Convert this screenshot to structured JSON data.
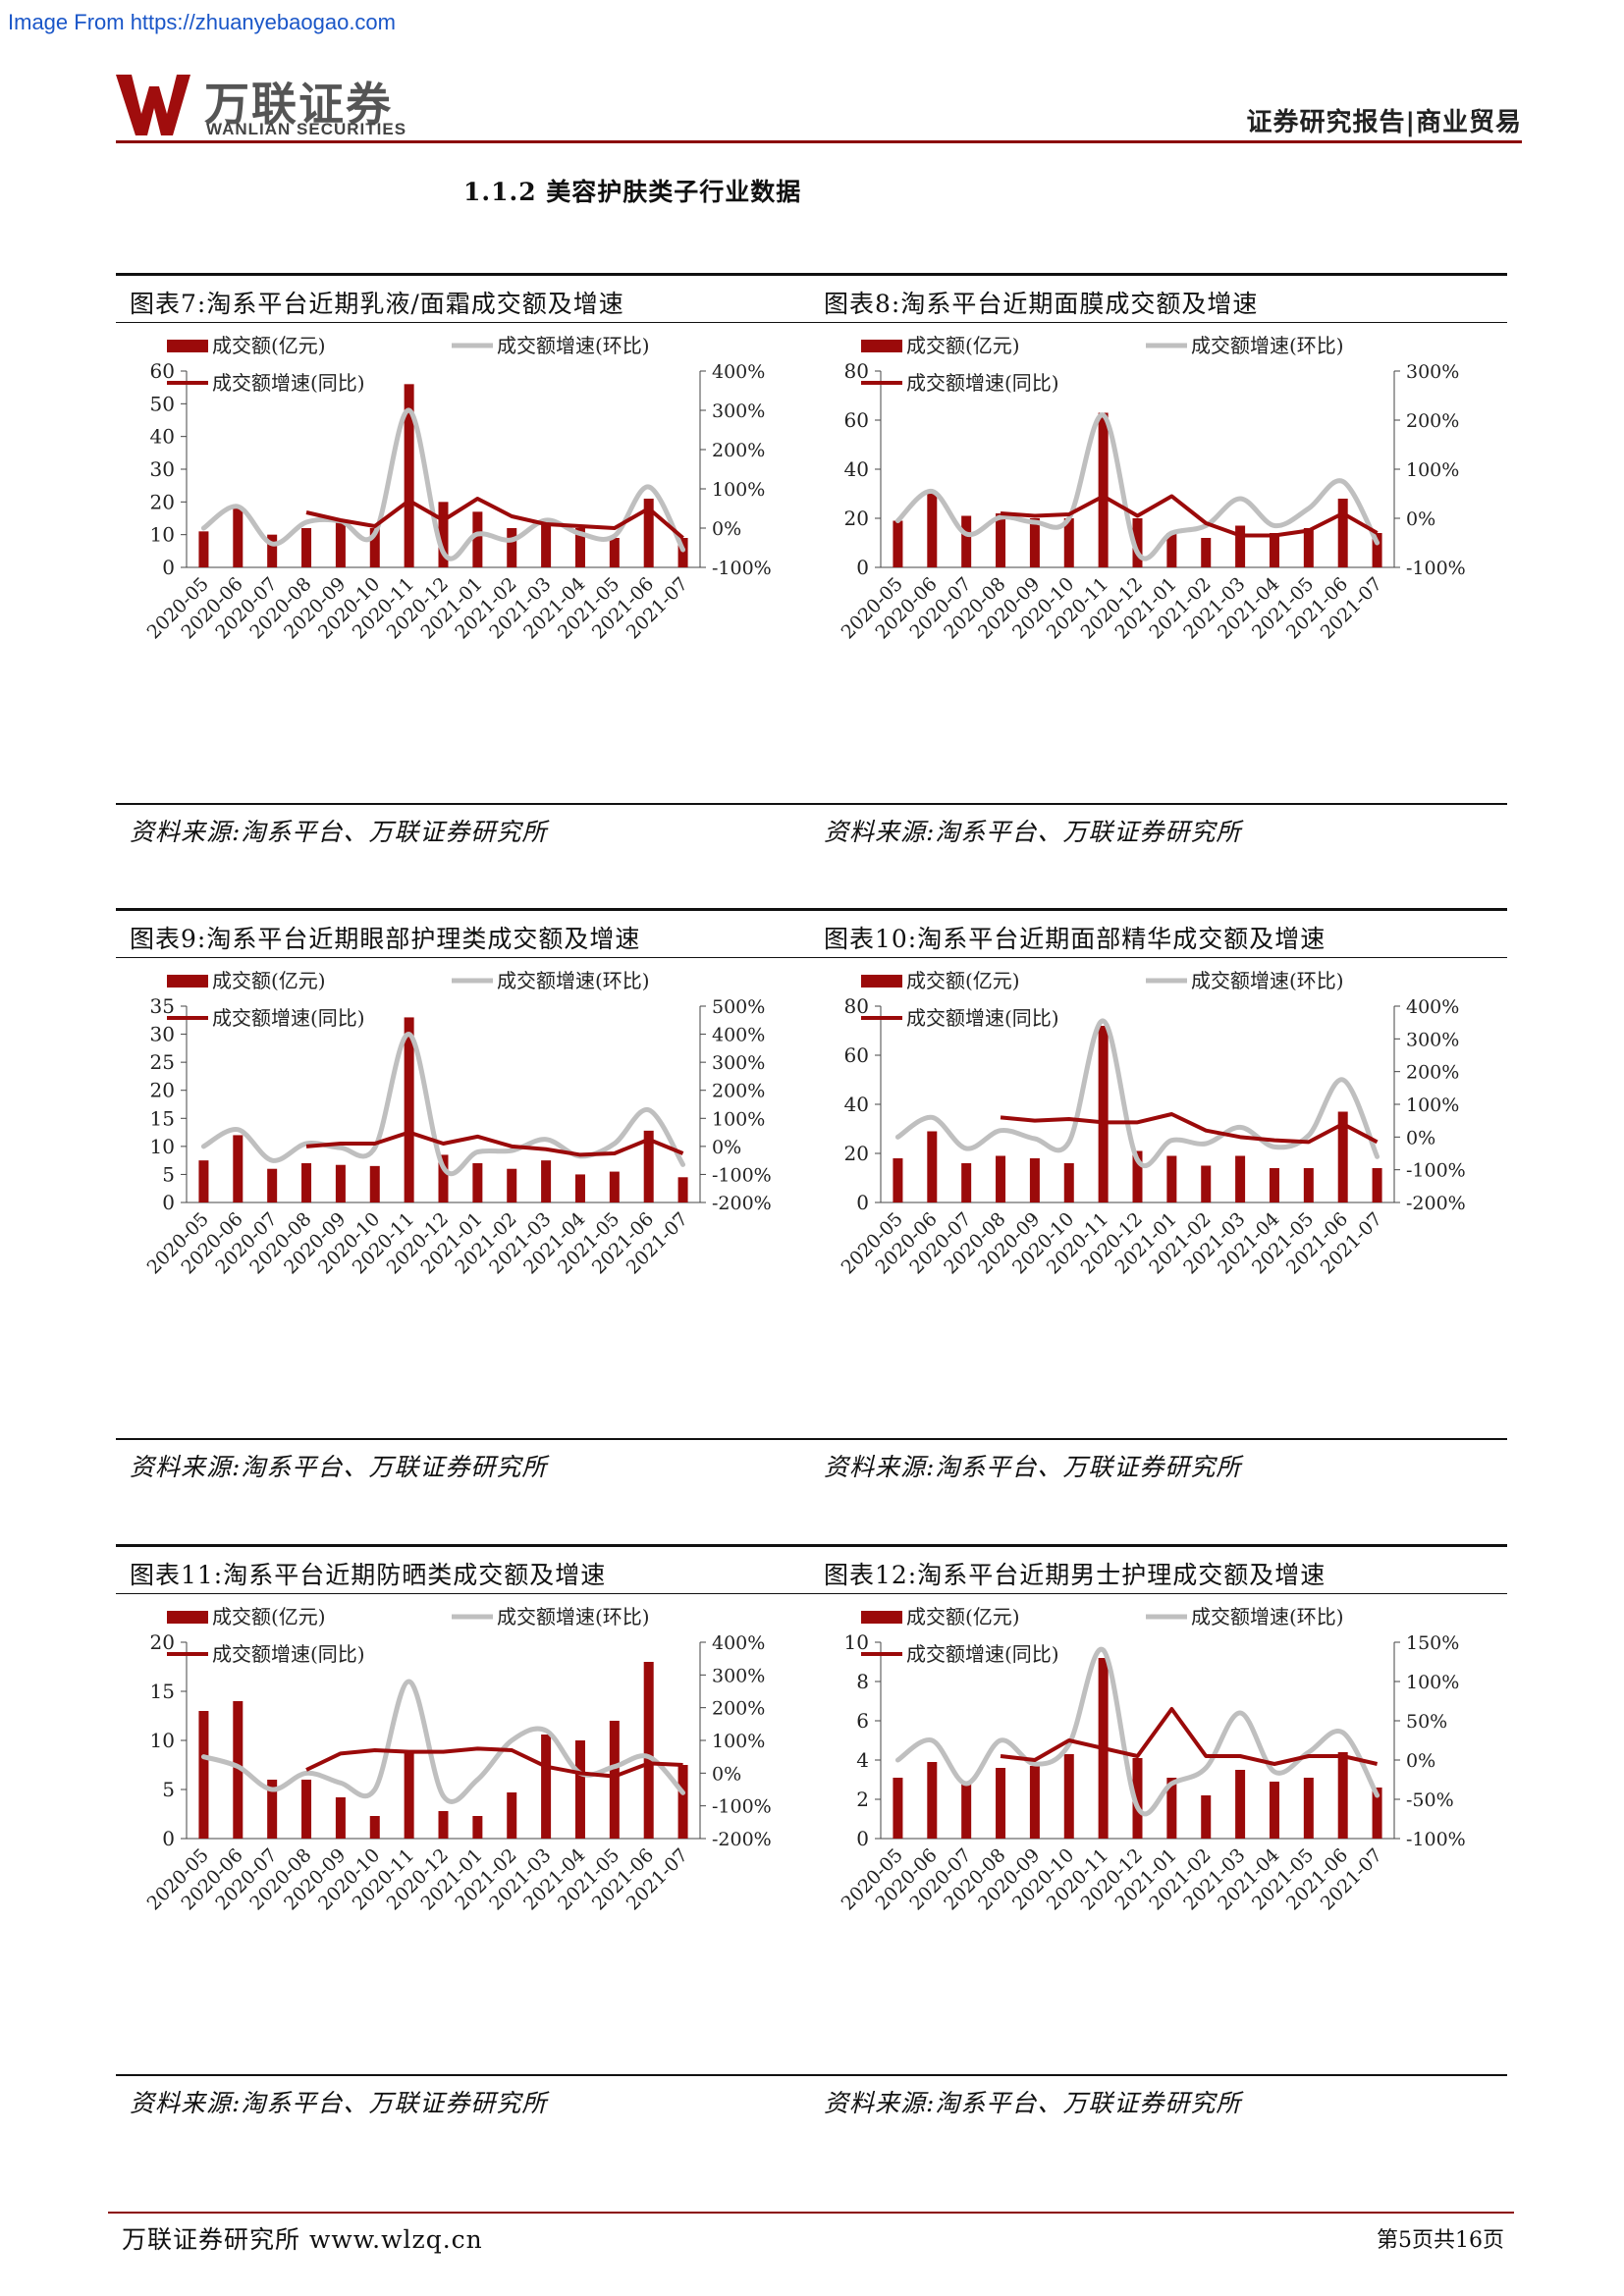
{
  "watermark": "Image From https://zhuanyebaogao.com",
  "header": {
    "logo_cn": "万联证券",
    "logo_en": "WANLIAN SECURITIES",
    "category": "证券研究报告|商业贸易"
  },
  "section_title": "1.1.2  美容护肤类子行业数据",
  "footer": {
    "org": "万联证券研究所  www.wlzq.cn",
    "page": "第5页共16页"
  },
  "colors": {
    "bar": "#9b0a0a",
    "line_yoy": "#9b0a0a",
    "line_mom": "#bfbfbf",
    "rule": "#8b0a0a"
  },
  "chart_data": [
    {
      "type": "bar",
      "title": "图表7:淘系平台近期乳液/面霜成交额及增速",
      "source": "资料来源:淘系平台、万联证券研究所",
      "categories": [
        "2020-05",
        "2020-06",
        "2020-07",
        "2020-08",
        "2020-09",
        "2020-10",
        "2020-11",
        "2020-12",
        "2021-01",
        "2021-02",
        "2021-03",
        "2021-04",
        "2021-05",
        "2021-06",
        "2021-07"
      ],
      "series": [
        {
          "name": "成交额(亿元)",
          "type": "bar",
          "axis": "left",
          "values": [
            11,
            18,
            10,
            12,
            14,
            12,
            56,
            20,
            17,
            12,
            14,
            12,
            9,
            21,
            9
          ]
        },
        {
          "name": "成交额增速(环比)",
          "type": "line",
          "axis": "right",
          "values": [
            0,
            55,
            -40,
            15,
            18,
            -14,
            300,
            -62,
            -15,
            -30,
            20,
            -14,
            -20,
            105,
            -55
          ]
        },
        {
          "name": "成交额增速(同比)",
          "type": "line",
          "axis": "right",
          "values": [
            null,
            null,
            null,
            40,
            20,
            5,
            70,
            20,
            75,
            30,
            10,
            5,
            0,
            50,
            -25
          ]
        }
      ],
      "yleft": {
        "min": 0,
        "max": 60,
        "ticks": [
          "0",
          "10",
          "20",
          "30",
          "40",
          "50",
          "60"
        ]
      },
      "yright": {
        "min": -100,
        "max": 400,
        "ticks": [
          "-100%",
          "0%",
          "100%",
          "200%",
          "300%",
          "400%"
        ]
      }
    },
    {
      "type": "bar",
      "title": "图表8:淘系平台近期面膜成交额及增速",
      "source": "资料来源:淘系平台、万联证券研究所",
      "categories": [
        "2020-05",
        "2020-06",
        "2020-07",
        "2020-08",
        "2020-09",
        "2020-10",
        "2020-11",
        "2020-12",
        "2021-01",
        "2021-02",
        "2021-03",
        "2021-04",
        "2021-05",
        "2021-06",
        "2021-07"
      ],
      "series": [
        {
          "name": "成交额(亿元)",
          "type": "bar",
          "axis": "left",
          "values": [
            19,
            30,
            21,
            22,
            20,
            20,
            63,
            20,
            14,
            12,
            17,
            14,
            16,
            28,
            14
          ]
        },
        {
          "name": "成交额增速(环比)",
          "type": "line",
          "axis": "right",
          "values": [
            -5,
            55,
            -32,
            2,
            -8,
            0,
            210,
            -70,
            -30,
            -15,
            40,
            -15,
            20,
            75,
            -50
          ]
        },
        {
          "name": "成交额增速(同比)",
          "type": "line",
          "axis": "right",
          "values": [
            null,
            null,
            null,
            10,
            5,
            8,
            45,
            5,
            45,
            -10,
            -35,
            -35,
            -25,
            10,
            -30
          ]
        }
      ],
      "yleft": {
        "min": 0,
        "max": 80,
        "ticks": [
          "0",
          "20",
          "40",
          "60",
          "80"
        ]
      },
      "yright": {
        "min": -100,
        "max": 300,
        "ticks": [
          "-100%",
          "0%",
          "100%",
          "200%",
          "300%"
        ]
      }
    },
    {
      "type": "bar",
      "title": "图表9:淘系平台近期眼部护理类成交额及增速",
      "source": "资料来源:淘系平台、万联证券研究所",
      "categories": [
        "2020-05",
        "2020-06",
        "2020-07",
        "2020-08",
        "2020-09",
        "2020-10",
        "2020-11",
        "2020-12",
        "2021-01",
        "2021-02",
        "2021-03",
        "2021-04",
        "2021-05",
        "2021-06",
        "2021-07"
      ],
      "series": [
        {
          "name": "成交额(亿元)",
          "type": "bar",
          "axis": "left",
          "values": [
            7.5,
            12,
            6,
            7,
            6.7,
            6.5,
            33,
            8.5,
            7,
            6,
            7.5,
            5,
            5.5,
            12.8,
            4.5
          ]
        },
        {
          "name": "成交额增速(环比)",
          "type": "line",
          "axis": "right",
          "values": [
            0,
            60,
            -50,
            10,
            -5,
            -5,
            400,
            -75,
            -20,
            -15,
            25,
            -35,
            10,
            130,
            -65
          ]
        },
        {
          "name": "成交额增速(同比)",
          "type": "line",
          "axis": "right",
          "values": [
            null,
            null,
            null,
            0,
            10,
            10,
            50,
            10,
            35,
            0,
            -10,
            -30,
            -25,
            25,
            -25
          ]
        }
      ],
      "yleft": {
        "min": 0,
        "max": 35,
        "ticks": [
          "0",
          "5",
          "10",
          "15",
          "20",
          "25",
          "30",
          "35"
        ]
      },
      "yright": {
        "min": -200,
        "max": 500,
        "ticks": [
          "-200%",
          "-100%",
          "0%",
          "100%",
          "200%",
          "300%",
          "400%",
          "500%"
        ]
      }
    },
    {
      "type": "bar",
      "title": "图表10:淘系平台近期面部精华成交额及增速",
      "source": "资料来源:淘系平台、万联证券研究所",
      "categories": [
        "2020-05",
        "2020-06",
        "2020-07",
        "2020-08",
        "2020-09",
        "2020-10",
        "2020-11",
        "2020-12",
        "2021-01",
        "2021-02",
        "2021-03",
        "2021-04",
        "2021-05",
        "2021-06",
        "2021-07"
      ],
      "series": [
        {
          "name": "成交额(亿元)",
          "type": "bar",
          "axis": "left",
          "values": [
            18,
            29,
            16,
            19,
            18,
            16,
            72,
            21,
            19,
            15,
            19,
            14,
            14,
            37,
            14
          ]
        },
        {
          "name": "成交额增速(环比)",
          "type": "line",
          "axis": "right",
          "values": [
            0,
            60,
            -35,
            20,
            -5,
            -15,
            355,
            -70,
            -10,
            -20,
            30,
            -30,
            5,
            175,
            -60
          ]
        },
        {
          "name": "成交额增速(同比)",
          "type": "line",
          "axis": "right",
          "values": [
            null,
            null,
            null,
            60,
            50,
            55,
            45,
            45,
            70,
            20,
            0,
            -10,
            -15,
            40,
            -15
          ]
        }
      ],
      "yleft": {
        "min": 0,
        "max": 80,
        "ticks": [
          "0",
          "20",
          "40",
          "60",
          "80"
        ]
      },
      "yright": {
        "min": -200,
        "max": 400,
        "ticks": [
          "-200%",
          "-100%",
          "0%",
          "100%",
          "200%",
          "300%",
          "400%"
        ]
      }
    },
    {
      "type": "bar",
      "title": "图表11:淘系平台近期防晒类成交额及增速",
      "source": "资料来源:淘系平台、万联证券研究所",
      "categories": [
        "2020-05",
        "2020-06",
        "2020-07",
        "2020-08",
        "2020-09",
        "2020-10",
        "2020-11",
        "2020-12",
        "2021-01",
        "2021-02",
        "2021-03",
        "2021-04",
        "2021-05",
        "2021-06",
        "2021-07"
      ],
      "series": [
        {
          "name": "成交额(亿元)",
          "type": "bar",
          "axis": "left",
          "values": [
            13,
            14,
            6,
            6,
            4.2,
            2.3,
            9,
            2.8,
            2.3,
            4.7,
            10.6,
            10,
            12,
            18,
            7.5
          ]
        },
        {
          "name": "成交额增速(环比)",
          "type": "line",
          "axis": "right",
          "values": [
            50,
            20,
            -50,
            0,
            -30,
            -50,
            280,
            -70,
            -20,
            100,
            130,
            0,
            20,
            50,
            -60
          ]
        },
        {
          "name": "成交额增速(同比)",
          "type": "line",
          "axis": "right",
          "values": [
            null,
            null,
            null,
            10,
            60,
            70,
            65,
            65,
            75,
            70,
            20,
            0,
            -10,
            30,
            25
          ]
        }
      ],
      "yleft": {
        "min": 0,
        "max": 20,
        "ticks": [
          "0",
          "5",
          "10",
          "15",
          "20"
        ]
      },
      "yright": {
        "min": -200,
        "max": 400,
        "ticks": [
          "-200%",
          "-100%",
          "0%",
          "100%",
          "200%",
          "300%",
          "400%"
        ]
      }
    },
    {
      "type": "bar",
      "title": "图表12:淘系平台近期男士护理成交额及增速",
      "source": "资料来源:淘系平台、万联证券研究所",
      "categories": [
        "2020-05",
        "2020-06",
        "2020-07",
        "2020-08",
        "2020-09",
        "2020-10",
        "2020-11",
        "2020-12",
        "2021-01",
        "2021-02",
        "2021-03",
        "2021-04",
        "2021-05",
        "2021-06",
        "2021-07"
      ],
      "series": [
        {
          "name": "成交额(亿元)",
          "type": "bar",
          "axis": "left",
          "values": [
            3.1,
            3.9,
            2.8,
            3.6,
            3.7,
            4.3,
            9.2,
            4.1,
            3.1,
            2.2,
            3.5,
            2.9,
            3.1,
            4.4,
            2.6
          ]
        },
        {
          "name": "成交额增速(环比)",
          "type": "line",
          "axis": "right",
          "values": [
            0,
            25,
            -30,
            25,
            -5,
            20,
            140,
            -60,
            -30,
            -10,
            60,
            -15,
            10,
            35,
            -45
          ]
        },
        {
          "name": "成交额增速(同比)",
          "type": "line",
          "axis": "right",
          "values": [
            null,
            null,
            null,
            5,
            0,
            25,
            15,
            5,
            65,
            5,
            5,
            -5,
            5,
            5,
            -5
          ]
        }
      ],
      "yleft": {
        "min": 0,
        "max": 10,
        "ticks": [
          "0",
          "2",
          "4",
          "6",
          "8",
          "10"
        ]
      },
      "yright": {
        "min": -100,
        "max": 150,
        "ticks": [
          "-100%",
          "-50%",
          "0%",
          "50%",
          "100%",
          "150%"
        ]
      }
    }
  ]
}
